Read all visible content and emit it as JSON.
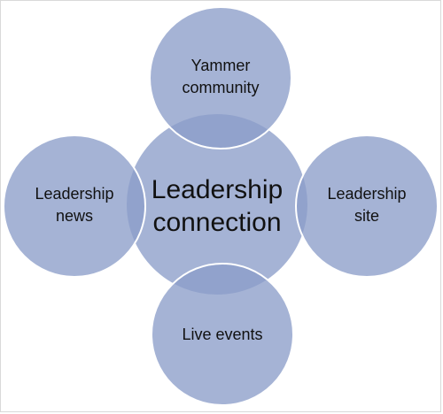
{
  "diagram": {
    "center": {
      "label_line1": "Leadership",
      "label_line2": "connection"
    },
    "nodes": [
      {
        "id": "top",
        "label_line1": "Yammer",
        "label_line2": "community"
      },
      {
        "id": "left",
        "label_line1": "Leadership",
        "label_line2": "news"
      },
      {
        "id": "right",
        "label_line1": "Leadership",
        "label_line2": "site"
      },
      {
        "id": "bottom",
        "label_line1": "Live events",
        "label_line2": ""
      }
    ],
    "colors": {
      "circle_fill": "#8c9ec9",
      "circle_opacity": "0.78",
      "outline": "#ffffff",
      "text": "#111111"
    }
  }
}
